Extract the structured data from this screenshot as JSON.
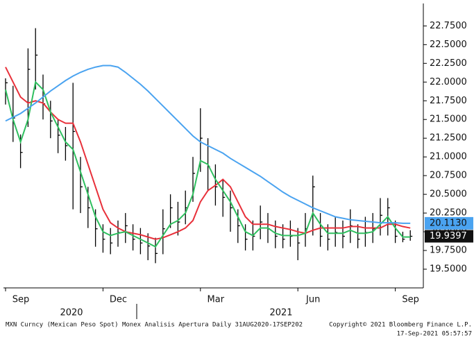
{
  "chart_data": {
    "type": "ohlc",
    "categories": [
      "Sep",
      null,
      null,
      null,
      null,
      null,
      null,
      null,
      null,
      null,
      null,
      null,
      null,
      "Dec",
      null,
      null,
      null,
      null,
      null,
      null,
      null,
      null,
      null,
      null,
      null,
      null,
      "Mar",
      null,
      null,
      null,
      null,
      null,
      null,
      null,
      null,
      null,
      null,
      null,
      null,
      "Jun",
      null,
      null,
      null,
      null,
      null,
      null,
      null,
      null,
      null,
      null,
      null,
      null,
      "Sep",
      null,
      null
    ],
    "year_labels": [
      "2020",
      "2021"
    ],
    "high": [
      22.05,
      21.95,
      21.3,
      22.45,
      22.72,
      22.1,
      21.75,
      21.5,
      21.4,
      21.99,
      21.0,
      20.6,
      20.3,
      20.1,
      20.05,
      20.15,
      20.25,
      20.1,
      20.05,
      19.98,
      19.92,
      20.3,
      20.5,
      20.4,
      20.55,
      21.0,
      21.65,
      21.25,
      20.9,
      20.7,
      20.55,
      20.3,
      20.1,
      20.15,
      20.35,
      20.25,
      20.15,
      20.1,
      20.15,
      20.05,
      20.25,
      20.75,
      20.25,
      20.1,
      20.2,
      20.15,
      20.3,
      20.1,
      20.2,
      20.25,
      20.45,
      20.45,
      20.15,
      20.0,
      20.02
    ],
    "low": [
      21.7,
      21.2,
      20.85,
      21.4,
      21.9,
      21.5,
      21.25,
      21.05,
      20.95,
      20.3,
      20.25,
      20.05,
      19.8,
      19.72,
      19.7,
      19.8,
      19.85,
      19.75,
      19.7,
      19.62,
      19.58,
      19.7,
      20.05,
      19.95,
      20.1,
      20.4,
      20.8,
      20.55,
      20.35,
      20.2,
      20.0,
      19.85,
      19.75,
      19.75,
      19.9,
      19.85,
      19.78,
      19.78,
      19.8,
      19.62,
      19.8,
      19.95,
      19.8,
      19.75,
      19.8,
      19.78,
      19.85,
      19.78,
      19.8,
      19.85,
      19.95,
      19.95,
      19.85,
      19.86,
      19.88
    ],
    "close": [
      21.99,
      21.52,
      21.06,
      22.17,
      22.36,
      21.71,
      21.48,
      21.29,
      21.15,
      21.34,
      20.6,
      20.32,
      20.04,
      19.9,
      19.85,
      19.99,
      20.08,
      19.9,
      19.85,
      19.81,
      19.71,
      20.04,
      20.32,
      20.13,
      20.32,
      20.78,
      21.25,
      20.87,
      20.6,
      20.46,
      20.32,
      20.08,
      19.9,
      19.94,
      20.13,
      20.04,
      19.94,
      19.9,
      19.94,
      19.85,
      20.04,
      20.6,
      19.94,
      19.9,
      19.99,
      19.94,
      20.08,
      19.9,
      19.99,
      20.04,
      20.22,
      20.32,
      19.94,
      19.9,
      19.9397
    ],
    "close_last_label": "19.9397",
    "bar_color": "#000000",
    "series": [
      {
        "color": "#e8303a",
        "values": [
          22.2,
          22.0,
          21.8,
          21.72,
          21.75,
          21.72,
          21.6,
          21.5,
          21.45,
          21.45,
          21.2,
          20.9,
          20.6,
          20.3,
          20.12,
          20.05,
          20.0,
          19.98,
          19.96,
          19.93,
          19.9,
          19.92,
          19.96,
          20.0,
          20.05,
          20.15,
          20.4,
          20.55,
          20.62,
          20.7,
          20.6,
          20.4,
          20.2,
          20.1,
          20.1,
          20.1,
          20.07,
          20.05,
          20.03,
          20.0,
          19.98,
          20.02,
          20.05,
          20.05,
          20.05,
          20.05,
          20.07,
          20.07,
          20.05,
          20.05,
          20.05,
          20.1,
          20.1,
          20.07,
          20.05
        ]
      },
      {
        "color": "#2fbf5f",
        "values": [
          21.9,
          21.5,
          21.2,
          21.5,
          22.0,
          21.9,
          21.6,
          21.4,
          21.2,
          21.1,
          20.8,
          20.5,
          20.2,
          20.0,
          19.95,
          19.98,
          20.0,
          19.95,
          19.9,
          19.85,
          19.8,
          19.95,
          20.1,
          20.15,
          20.25,
          20.5,
          20.95,
          20.9,
          20.7,
          20.55,
          20.4,
          20.2,
          20.0,
          19.95,
          20.05,
          20.05,
          19.98,
          19.95,
          19.95,
          19.95,
          19.98,
          20.25,
          20.1,
          19.98,
          19.98,
          19.98,
          20.02,
          19.98,
          19.98,
          20.0,
          20.1,
          20.2,
          20.05,
          19.93,
          19.93
        ]
      },
      {
        "color": "#4aa3f0",
        "last_label": "20.1130",
        "values": [
          21.48,
          21.53,
          21.58,
          21.65,
          21.72,
          21.8,
          21.88,
          21.95,
          22.02,
          22.08,
          22.13,
          22.17,
          22.2,
          22.22,
          22.22,
          22.2,
          22.13,
          22.05,
          21.97,
          21.88,
          21.78,
          21.68,
          21.58,
          21.48,
          21.38,
          21.28,
          21.2,
          21.15,
          21.1,
          21.05,
          20.98,
          20.92,
          20.86,
          20.8,
          20.74,
          20.67,
          20.6,
          20.53,
          20.47,
          20.42,
          20.37,
          20.32,
          20.28,
          20.24,
          20.2,
          20.18,
          20.16,
          20.15,
          20.14,
          20.13,
          20.12,
          20.12,
          20.12,
          20.113,
          20.113
        ]
      }
    ],
    "ylim": [
      19.25,
      23.05
    ],
    "yticks": [
      {
        "value": 19.5,
        "label": "19.5000"
      },
      {
        "value": 19.75,
        "label": "19.7500"
      },
      {
        "value": 20,
        "label": "20.0000"
      },
      {
        "value": 20.25,
        "label": "20.2500"
      },
      {
        "value": 20.5,
        "label": "20.5000"
      },
      {
        "value": 20.75,
        "label": "20.7500"
      },
      {
        "value": 21,
        "label": "21.0000"
      },
      {
        "value": 21.25,
        "label": "21.2500"
      },
      {
        "value": 21.5,
        "label": "21.5000"
      },
      {
        "value": 21.75,
        "label": "21.7500"
      },
      {
        "value": 22,
        "label": "22.0000"
      },
      {
        "value": 22.25,
        "label": "22.2500"
      },
      {
        "value": 22.5,
        "label": "22.5000"
      },
      {
        "value": 22.75,
        "label": "22.7500"
      }
    ]
  },
  "footer": {
    "left": "MXN Curncy (Mexican Peso Spot) Monex Analisis Apertura  Daily 31AUG2020-17SEP202",
    "right": "Copyright© 2021 Bloomberg Finance L.P.",
    "timestamp": "17-Sep-2021 05:57:57"
  }
}
